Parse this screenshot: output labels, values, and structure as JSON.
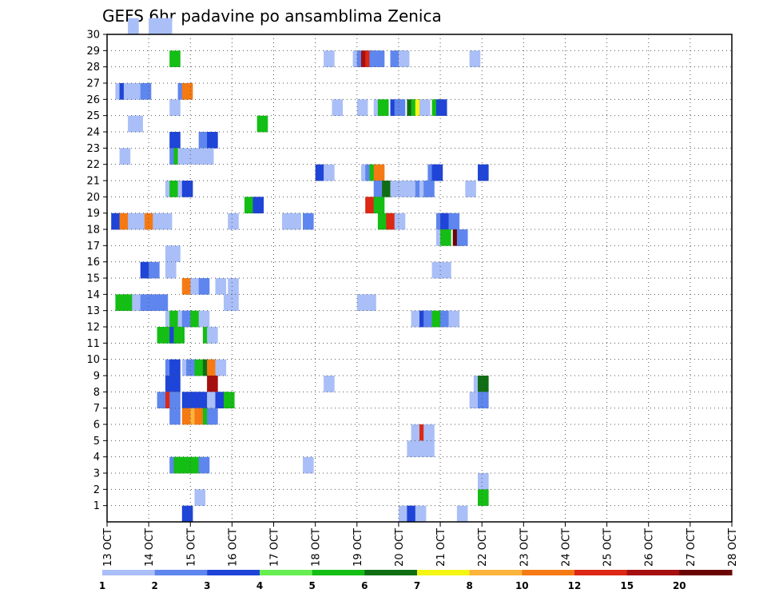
{
  "chart_data": {
    "type": "heatmap",
    "title": "GEFS 6hr padavine po ansamblima Zenica",
    "x_ticks": [
      "13 OCT",
      "14 OCT",
      "15 OCT",
      "16 OCT",
      "17 OCT",
      "18 OCT",
      "19 OCT",
      "20 OCT",
      "21 OCT",
      "22 OCT",
      "23 OCT",
      "24 OCT",
      "25 OCT",
      "26 OCT",
      "27 OCT",
      "28 OCT"
    ],
    "y_ticks": [
      "1",
      "2",
      "3",
      "4",
      "5",
      "6",
      "7",
      "8",
      "9",
      "10",
      "11",
      "12",
      "13",
      "14",
      "15",
      "16",
      "17",
      "18",
      "19",
      "20",
      "21",
      "22",
      "23",
      "24",
      "25",
      "26",
      "27",
      "28",
      "29",
      "30"
    ],
    "xlim": [
      "13 OCT",
      "28 OCT"
    ],
    "ylim": [
      0,
      30
    ],
    "grid": true,
    "legend_position": "bottom",
    "legend_labels": [
      "1",
      "2",
      "3",
      "4",
      "5",
      "6",
      "7",
      "8",
      "10",
      "12",
      "15",
      "20"
    ],
    "legend_colors": [
      "#aabff7",
      "#5e86ee",
      "#1e44d8",
      "#66ee52",
      "#14be14",
      "#0f6e14",
      "#f5f514",
      "#fbb43c",
      "#f57a14",
      "#dc2814",
      "#a50f0f",
      "#6b0505"
    ],
    "cells": [
      [
        0.5,
        30,
        1
      ],
      [
        1,
        30,
        1
      ],
      [
        1.1,
        30,
        1
      ],
      [
        1.3,
        30,
        1
      ],
      [
        1.5,
        28,
        5
      ],
      [
        5.2,
        28,
        1
      ],
      [
        5.9,
        28,
        1
      ],
      [
        6,
        28,
        2
      ],
      [
        6.1,
        28,
        15
      ],
      [
        6.2,
        28,
        12
      ],
      [
        6.3,
        28,
        2
      ],
      [
        6.4,
        28,
        2
      ],
      [
        6.8,
        28,
        2
      ],
      [
        6.9,
        28,
        2
      ],
      [
        7,
        28,
        1
      ],
      [
        8.7,
        28,
        1
      ],
      [
        0.2,
        26,
        1
      ],
      [
        0.3,
        26,
        3
      ],
      [
        0.4,
        26,
        1
      ],
      [
        0.6,
        26,
        1
      ],
      [
        0.8,
        26,
        2
      ],
      [
        1.7,
        26,
        2
      ],
      [
        1.8,
        26,
        10
      ],
      [
        1.5,
        25,
        1
      ],
      [
        5.4,
        25,
        1
      ],
      [
        6,
        25,
        1
      ],
      [
        6.4,
        25,
        1
      ],
      [
        6.5,
        25,
        5
      ],
      [
        6.8,
        25,
        3
      ],
      [
        6.9,
        25,
        2
      ],
      [
        7.2,
        25,
        6
      ],
      [
        7.3,
        25,
        5
      ],
      [
        7.4,
        25,
        7
      ],
      [
        7.5,
        25,
        1
      ],
      [
        7.8,
        25,
        5
      ],
      [
        7.9,
        25,
        3
      ],
      [
        0.5,
        24,
        1
      ],
      [
        0.6,
        24,
        1
      ],
      [
        3.6,
        24,
        5
      ],
      [
        1.5,
        23,
        3
      ],
      [
        2.2,
        23,
        2
      ],
      [
        2.4,
        23,
        3
      ],
      [
        0.3,
        22,
        1
      ],
      [
        1.5,
        22,
        2
      ],
      [
        1.6,
        22,
        5
      ],
      [
        1.7,
        22,
        1
      ],
      [
        1.9,
        22,
        1
      ],
      [
        2.1,
        22,
        1
      ],
      [
        2.3,
        22,
        1
      ],
      [
        5,
        21,
        3
      ],
      [
        5.2,
        21,
        1
      ],
      [
        6.1,
        21,
        1
      ],
      [
        6.2,
        21,
        2
      ],
      [
        6.3,
        21,
        5
      ],
      [
        6.4,
        21,
        10
      ],
      [
        7.7,
        21,
        2
      ],
      [
        7.8,
        21,
        3
      ],
      [
        8.9,
        21,
        3
      ],
      [
        1.4,
        20,
        1
      ],
      [
        1.5,
        20,
        5
      ],
      [
        1.7,
        20,
        1
      ],
      [
        1.8,
        20,
        3
      ],
      [
        6.4,
        20,
        2
      ],
      [
        6.6,
        20,
        6
      ],
      [
        6.8,
        20,
        1
      ],
      [
        7,
        20,
        1
      ],
      [
        7.2,
        20,
        1
      ],
      [
        7.4,
        20,
        2
      ],
      [
        7.5,
        20,
        1
      ],
      [
        7.6,
        20,
        2
      ],
      [
        8.6,
        20,
        1
      ],
      [
        3.3,
        19,
        5
      ],
      [
        3.5,
        19,
        3
      ],
      [
        6.2,
        19,
        12
      ],
      [
        6.4,
        19,
        5
      ],
      [
        0.1,
        18,
        3
      ],
      [
        0.3,
        18,
        10
      ],
      [
        0.5,
        18,
        1
      ],
      [
        0.7,
        18,
        1
      ],
      [
        0.9,
        18,
        10
      ],
      [
        1.1,
        18,
        1
      ],
      [
        1.3,
        18,
        1
      ],
      [
        2.9,
        18,
        1
      ],
      [
        4.2,
        18,
        1
      ],
      [
        4.4,
        18,
        1
      ],
      [
        4.7,
        18,
        2
      ],
      [
        6.5,
        18,
        5
      ],
      [
        6.7,
        18,
        12
      ],
      [
        6.9,
        18,
        1
      ],
      [
        7.9,
        18,
        2
      ],
      [
        8,
        18,
        3
      ],
      [
        8.2,
        18,
        2
      ],
      [
        7.9,
        17,
        1
      ],
      [
        8,
        17,
        5
      ],
      [
        8.3,
        17,
        20
      ],
      [
        8.4,
        17,
        2
      ],
      [
        1.4,
        16,
        1
      ],
      [
        1.5,
        16,
        1
      ],
      [
        0.8,
        15,
        3
      ],
      [
        1,
        15,
        2
      ],
      [
        1.4,
        15,
        1
      ],
      [
        7.8,
        15,
        1
      ],
      [
        8,
        15,
        1
      ],
      [
        1.8,
        14,
        10
      ],
      [
        2,
        14,
        1
      ],
      [
        2.2,
        14,
        2
      ],
      [
        2.6,
        14,
        1
      ],
      [
        2.9,
        14,
        1
      ],
      [
        0.2,
        13,
        5
      ],
      [
        0.4,
        13,
        5
      ],
      [
        0.6,
        13,
        1
      ],
      [
        0.8,
        13,
        2
      ],
      [
        1,
        13,
        2
      ],
      [
        1.2,
        13,
        2
      ],
      [
        2.8,
        13,
        1
      ],
      [
        2.9,
        13,
        1
      ],
      [
        6,
        13,
        1
      ],
      [
        6.2,
        13,
        1
      ],
      [
        1.4,
        12,
        1
      ],
      [
        1.5,
        12,
        5
      ],
      [
        1.7,
        12,
        1
      ],
      [
        1.8,
        12,
        2
      ],
      [
        2,
        12,
        5
      ],
      [
        2.2,
        12,
        1
      ],
      [
        7.3,
        12,
        1
      ],
      [
        7.5,
        12,
        3
      ],
      [
        7.6,
        12,
        2
      ],
      [
        7.8,
        12,
        5
      ],
      [
        8,
        12,
        2
      ],
      [
        8.2,
        12,
        1
      ],
      [
        1.2,
        11,
        5
      ],
      [
        1.4,
        11,
        5
      ],
      [
        1.5,
        11,
        3
      ],
      [
        1.6,
        11,
        5
      ],
      [
        2.3,
        11,
        5
      ],
      [
        2.4,
        11,
        1
      ],
      [
        1.4,
        9,
        2
      ],
      [
        1.5,
        9,
        3
      ],
      [
        1.8,
        9,
        1
      ],
      [
        1.9,
        9,
        2
      ],
      [
        2.1,
        9,
        5
      ],
      [
        2.3,
        9,
        6
      ],
      [
        2.4,
        9,
        10
      ],
      [
        2.6,
        9,
        1
      ],
      [
        1.4,
        8,
        3
      ],
      [
        1.5,
        8,
        3
      ],
      [
        2.4,
        8,
        15
      ],
      [
        5.2,
        8,
        1
      ],
      [
        8.8,
        8,
        1
      ],
      [
        8.9,
        8,
        6
      ],
      [
        1.2,
        7,
        2
      ],
      [
        1.4,
        7,
        12
      ],
      [
        1.5,
        7,
        2
      ],
      [
        1.8,
        7,
        3
      ],
      [
        2,
        7,
        3
      ],
      [
        2.2,
        7,
        3
      ],
      [
        2.4,
        7,
        1
      ],
      [
        2.6,
        7,
        3
      ],
      [
        2.8,
        7,
        5
      ],
      [
        8.7,
        7,
        1
      ],
      [
        8.9,
        7,
        2
      ],
      [
        1.5,
        6,
        2
      ],
      [
        1.8,
        6,
        10
      ],
      [
        2,
        6,
        8
      ],
      [
        2.1,
        6,
        10
      ],
      [
        2.3,
        6,
        5
      ],
      [
        2.4,
        6,
        2
      ],
      [
        7.3,
        5,
        1
      ],
      [
        7.5,
        5,
        12
      ],
      [
        7.6,
        5,
        1
      ],
      [
        7.2,
        4,
        1
      ],
      [
        7.4,
        4,
        1
      ],
      [
        7.6,
        4,
        1
      ],
      [
        1.5,
        3,
        2
      ],
      [
        1.6,
        3,
        5
      ],
      [
        1.8,
        3,
        5
      ],
      [
        2,
        3,
        5
      ],
      [
        2.2,
        3,
        2
      ],
      [
        4.7,
        3,
        1
      ],
      [
        8.9,
        2,
        1
      ],
      [
        2.1,
        1,
        1
      ],
      [
        8.9,
        1,
        5
      ],
      [
        1.8,
        0,
        3
      ],
      [
        7,
        0,
        1
      ],
      [
        7.2,
        0,
        3
      ],
      [
        7.4,
        0,
        1
      ],
      [
        8.4,
        0,
        1
      ]
    ]
  }
}
